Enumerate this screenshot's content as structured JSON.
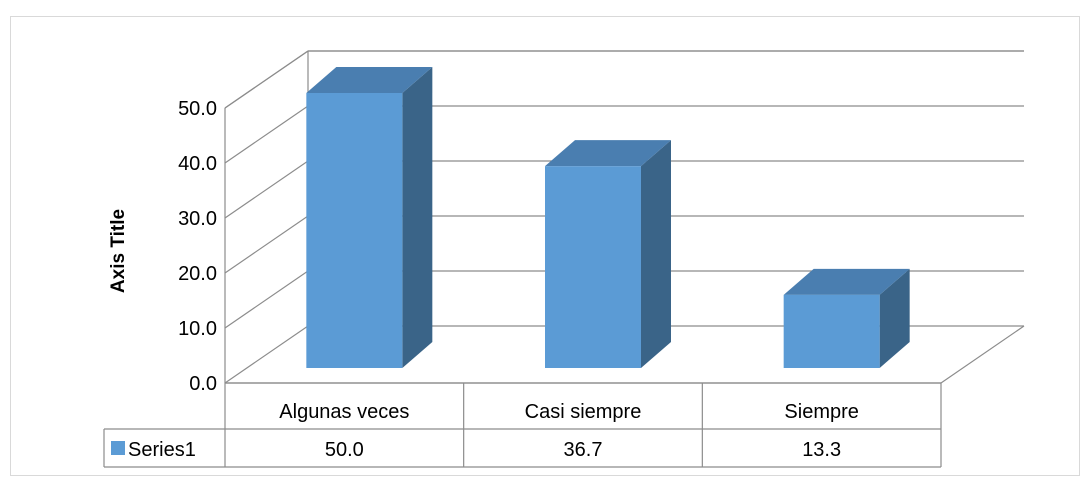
{
  "chart_data": {
    "type": "bar",
    "style": "3d-column-with-data-table",
    "title": "",
    "xlabel": "",
    "ylabel": "Axis Title",
    "ylim": [
      0,
      50
    ],
    "yticks": [
      "0.0",
      "10.0",
      "20.0",
      "30.0",
      "40.0",
      "50.0"
    ],
    "categories": [
      "Algunas veces",
      "Casi siempre",
      "Siempre"
    ],
    "series": [
      {
        "name": "Series1",
        "values": [
          50.0,
          36.7,
          13.3
        ],
        "value_labels": [
          "50.0",
          "36.7",
          "13.3"
        ],
        "color": "#5b9bd5",
        "side_color": "#3a6488",
        "top_color": "#4a7eb0"
      }
    ],
    "grid": true,
    "legend": "data-table"
  }
}
